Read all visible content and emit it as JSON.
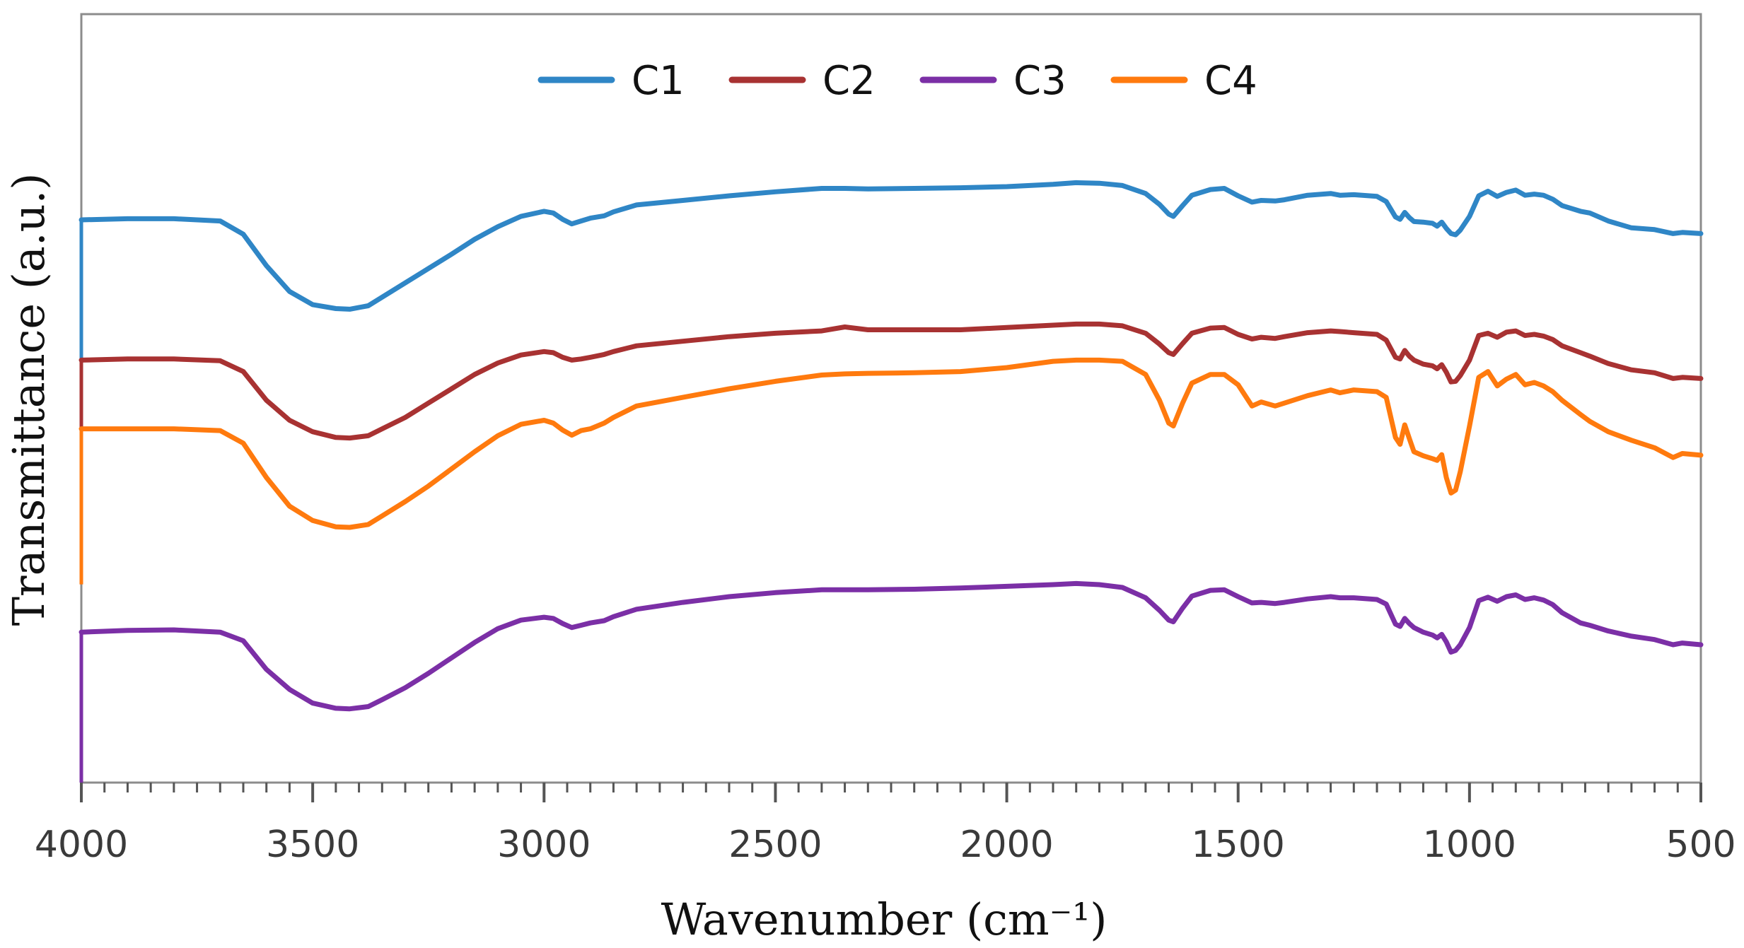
{
  "chart_data": {
    "type": "line",
    "title": "",
    "xlabel": "Wavenumber (cm⁻¹)",
    "ylabel": "Transmittance (a.u.)",
    "xlim": [
      4000,
      500
    ],
    "ylim": [
      0,
      100
    ],
    "x_ticks": [
      4000,
      3500,
      3000,
      2500,
      2000,
      1500,
      1000,
      500
    ],
    "x_tick_labels": [
      "4000",
      "3500",
      "3000",
      "2500",
      "2000",
      "1500",
      "1000",
      "500"
    ],
    "y_ticks": [],
    "legend": {
      "position": "top-center",
      "orientation": "horizontal"
    },
    "grid": false,
    "colors": {
      "C1": "#2f86c6",
      "C2": "#a83232",
      "C3": "#7b2fa6",
      "C4": "#ff7a0e",
      "axis": "#7f7f7f"
    },
    "series": [
      {
        "name": "C1",
        "x": [
          4000,
          3900,
          3800,
          3700,
          3650,
          3600,
          3550,
          3500,
          3450,
          3420,
          3380,
          3350,
          3300,
          3250,
          3200,
          3150,
          3100,
          3050,
          3000,
          2980,
          2960,
          2940,
          2920,
          2900,
          2870,
          2850,
          2800,
          2700,
          2600,
          2500,
          2400,
          2350,
          2300,
          2200,
          2100,
          2000,
          1900,
          1850,
          1800,
          1750,
          1700,
          1670,
          1650,
          1640,
          1620,
          1600,
          1560,
          1530,
          1500,
          1470,
          1450,
          1420,
          1400,
          1350,
          1300,
          1280,
          1250,
          1200,
          1180,
          1160,
          1150,
          1140,
          1130,
          1120,
          1100,
          1080,
          1070,
          1060,
          1050,
          1040,
          1030,
          1020,
          1000,
          980,
          960,
          940,
          920,
          900,
          880,
          860,
          840,
          820,
          800,
          760,
          740,
          700,
          650,
          600,
          560,
          540,
          500
        ],
        "values": [
          90,
          90.2,
          90.2,
          89.8,
          87.5,
          82,
          77.5,
          75.2,
          74.5,
          74.4,
          75,
          76.5,
          79,
          81.5,
          84,
          86.6,
          88.8,
          90.6,
          91.5,
          91.2,
          90.1,
          89.3,
          89.8,
          90.3,
          90.7,
          91.4,
          92.6,
          93.4,
          94.2,
          94.9,
          95.5,
          95.5,
          95.4,
          95.5,
          95.6,
          95.8,
          96.2,
          96.5,
          96.4,
          96,
          94.6,
          92.7,
          91,
          90.6,
          92.5,
          94.3,
          95.3,
          95.5,
          94.2,
          93.1,
          93.4,
          93.3,
          93.5,
          94.3,
          94.6,
          94.3,
          94.4,
          94.1,
          93.2,
          90.5,
          90.1,
          91.3,
          90.4,
          89.7,
          89.6,
          89.4,
          88.9,
          89.6,
          88.5,
          87.6,
          87.4,
          88.2,
          90.6,
          94.2,
          95,
          94.1,
          94.8,
          95.2,
          94.3,
          94.5,
          94.3,
          93.6,
          92.5,
          91.5,
          91.2,
          89.8,
          88.6,
          88.3,
          87.6,
          87.8,
          87.6
        ]
      },
      {
        "name": "C2",
        "x": [
          4000,
          3900,
          3800,
          3700,
          3650,
          3600,
          3550,
          3500,
          3450,
          3420,
          3380,
          3350,
          3300,
          3250,
          3200,
          3150,
          3100,
          3050,
          3000,
          2980,
          2960,
          2940,
          2920,
          2900,
          2870,
          2850,
          2800,
          2700,
          2600,
          2500,
          2400,
          2350,
          2300,
          2200,
          2100,
          2000,
          1900,
          1850,
          1800,
          1750,
          1700,
          1670,
          1650,
          1640,
          1620,
          1600,
          1560,
          1530,
          1500,
          1470,
          1450,
          1420,
          1400,
          1350,
          1300,
          1280,
          1250,
          1200,
          1180,
          1160,
          1150,
          1140,
          1130,
          1120,
          1100,
          1080,
          1070,
          1060,
          1050,
          1040,
          1030,
          1020,
          1000,
          980,
          960,
          940,
          920,
          900,
          880,
          860,
          840,
          820,
          800,
          760,
          740,
          700,
          650,
          600,
          560,
          540,
          500
        ],
        "values": [
          65.5,
          65.7,
          65.7,
          65.4,
          63.5,
          58.5,
          55,
          53,
          52,
          51.9,
          52.3,
          53.5,
          55.5,
          58,
          60.5,
          63,
          65,
          66.4,
          67,
          66.8,
          66,
          65.5,
          65.7,
          66,
          66.5,
          67,
          68,
          68.8,
          69.6,
          70.2,
          70.6,
          71.3,
          70.8,
          70.8,
          70.8,
          71.2,
          71.6,
          71.8,
          71.8,
          71.5,
          70.2,
          68.3,
          66.8,
          66.5,
          68.4,
          70.2,
          71.1,
          71.2,
          70,
          69.2,
          69.5,
          69.3,
          69.6,
          70.3,
          70.6,
          70.5,
          70.3,
          70,
          69,
          66,
          65.7,
          67.2,
          66.2,
          65.5,
          64.8,
          64.5,
          64,
          64.7,
          63.4,
          61.7,
          61.8,
          62.8,
          65.5,
          69.8,
          70.2,
          69.5,
          70.4,
          70.6,
          69.8,
          70,
          69.7,
          69.1,
          68,
          66.8,
          66.2,
          64.9,
          63.8,
          63.3,
          62.3,
          62.5,
          62.3
        ]
      },
      {
        "name": "C3",
        "x": [
          4000,
          3900,
          3800,
          3700,
          3650,
          3600,
          3550,
          3500,
          3450,
          3420,
          3380,
          3350,
          3300,
          3250,
          3200,
          3150,
          3100,
          3050,
          3000,
          2980,
          2960,
          2940,
          2920,
          2900,
          2870,
          2850,
          2800,
          2700,
          2600,
          2500,
          2400,
          2350,
          2300,
          2200,
          2100,
          2000,
          1900,
          1850,
          1800,
          1750,
          1700,
          1670,
          1650,
          1640,
          1620,
          1600,
          1560,
          1530,
          1500,
          1470,
          1450,
          1420,
          1400,
          1350,
          1300,
          1280,
          1250,
          1200,
          1180,
          1160,
          1150,
          1140,
          1130,
          1120,
          1100,
          1080,
          1070,
          1060,
          1050,
          1040,
          1030,
          1020,
          1000,
          980,
          960,
          940,
          920,
          900,
          880,
          860,
          840,
          820,
          800,
          760,
          740,
          700,
          650,
          600,
          560,
          540,
          500
        ],
        "values": [
          18,
          18.3,
          18.4,
          18,
          16.5,
          11.5,
          8,
          5.6,
          4.7,
          4.6,
          5,
          6.2,
          8.3,
          10.8,
          13.5,
          16.2,
          18.6,
          20.1,
          20.6,
          20.4,
          19.5,
          18.8,
          19.2,
          19.6,
          20,
          20.7,
          22,
          23.2,
          24.2,
          24.9,
          25.4,
          25.4,
          25.4,
          25.5,
          25.7,
          26,
          26.3,
          26.5,
          26.3,
          25.8,
          24,
          21.8,
          20.1,
          19.8,
          22.2,
          24.3,
          25.3,
          25.4,
          24.2,
          23.1,
          23.2,
          23,
          23.2,
          23.8,
          24.2,
          24,
          24,
          23.7,
          22.9,
          19.4,
          19,
          20.4,
          19.5,
          18.8,
          18,
          17.5,
          17,
          17.6,
          16.3,
          14.5,
          14.8,
          15.8,
          18.8,
          23.5,
          24.1,
          23.4,
          24.2,
          24.5,
          23.7,
          24,
          23.6,
          22.8,
          21.4,
          19.6,
          19.2,
          18.2,
          17.3,
          16.7,
          15.8,
          16.1,
          15.8
        ]
      },
      {
        "name": "C4",
        "x": [
          4000,
          3900,
          3800,
          3700,
          3650,
          3600,
          3550,
          3500,
          3450,
          3420,
          3380,
          3350,
          3300,
          3250,
          3200,
          3150,
          3100,
          3050,
          3000,
          2980,
          2960,
          2940,
          2920,
          2900,
          2870,
          2850,
          2800,
          2700,
          2600,
          2500,
          2400,
          2350,
          2300,
          2200,
          2100,
          2000,
          1900,
          1850,
          1800,
          1750,
          1700,
          1670,
          1650,
          1640,
          1620,
          1600,
          1560,
          1530,
          1500,
          1470,
          1450,
          1420,
          1400,
          1350,
          1300,
          1280,
          1250,
          1200,
          1180,
          1160,
          1150,
          1140,
          1130,
          1120,
          1100,
          1080,
          1070,
          1060,
          1050,
          1040,
          1030,
          1020,
          1000,
          980,
          960,
          940,
          920,
          900,
          880,
          860,
          840,
          820,
          800,
          760,
          740,
          700,
          650,
          600,
          560,
          540,
          500
        ],
        "values": [
          53.5,
          53.5,
          53.5,
          53.2,
          51,
          45,
          40,
          37.5,
          36.4,
          36.3,
          36.8,
          38.3,
          40.8,
          43.5,
          46.5,
          49.5,
          52.3,
          54.3,
          55,
          54.5,
          53.3,
          52.4,
          53.2,
          53.5,
          54.5,
          55.5,
          57.5,
          59,
          60.5,
          61.8,
          62.9,
          63.1,
          63.2,
          63.3,
          63.5,
          64.2,
          65.3,
          65.5,
          65.5,
          65.3,
          63,
          58.5,
          54.5,
          54,
          58,
          61.5,
          63,
          63,
          61.2,
          57.5,
          58.2,
          57.5,
          58,
          59.3,
          60.3,
          59.8,
          60.3,
          60,
          59,
          52,
          50.8,
          54.2,
          51.8,
          49.5,
          48.8,
          48.3,
          48,
          49,
          45,
          42.3,
          42.8,
          46,
          54,
          62.5,
          63.5,
          61,
          62.2,
          63,
          61.2,
          61.6,
          61,
          60,
          58.5,
          56,
          54.8,
          53,
          51.5,
          50.2,
          48.5,
          49.2,
          48.9
        ]
      }
    ]
  }
}
